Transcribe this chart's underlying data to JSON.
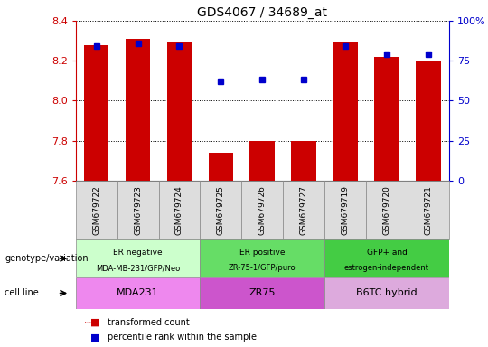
{
  "title": "GDS4067 / 34689_at",
  "samples": [
    "GSM679722",
    "GSM679723",
    "GSM679724",
    "GSM679725",
    "GSM679726",
    "GSM679727",
    "GSM679719",
    "GSM679720",
    "GSM679721"
  ],
  "transformed_count": [
    8.28,
    8.31,
    8.29,
    7.74,
    7.8,
    7.8,
    8.29,
    8.22,
    8.2
  ],
  "percentile_rank": [
    84,
    86,
    84,
    62,
    63,
    63,
    84,
    79,
    79
  ],
  "ylim_left": [
    7.6,
    8.4
  ],
  "ylim_right": [
    0,
    100
  ],
  "yticks_left": [
    7.6,
    7.8,
    8.0,
    8.2,
    8.4
  ],
  "yticks_right": [
    0,
    25,
    50,
    75,
    100
  ],
  "ytick_labels_right": [
    "0",
    "25",
    "50",
    "75",
    "100%"
  ],
  "bar_color": "#cc0000",
  "dot_color": "#0000cc",
  "groups": [
    {
      "label_top": "ER negative",
      "label_bot": "MDA-MB-231/GFP/Neo",
      "color": "#ccffcc",
      "start": 0,
      "end": 3
    },
    {
      "label_top": "ER positive",
      "label_bot": "ZR-75-1/GFP/puro",
      "color": "#66dd66",
      "start": 3,
      "end": 6
    },
    {
      "label_top": "GFP+ and",
      "label_bot": "estrogen-independent",
      "color": "#44cc44",
      "start": 6,
      "end": 9
    }
  ],
  "cell_lines": [
    {
      "label": "MDA231",
      "color": "#ee88ee",
      "start": 0,
      "end": 3
    },
    {
      "label": "ZR75",
      "color": "#cc55cc",
      "start": 3,
      "end": 6
    },
    {
      "label": "B6TC hybrid",
      "color": "#ddaadd",
      "start": 6,
      "end": 9
    }
  ],
  "left_label_genotype": "genotype/variation",
  "left_label_cellline": "cell line",
  "bar_width": 0.6,
  "baseline": 7.6,
  "sample_box_color": "#dddddd",
  "border_color": "#888888"
}
